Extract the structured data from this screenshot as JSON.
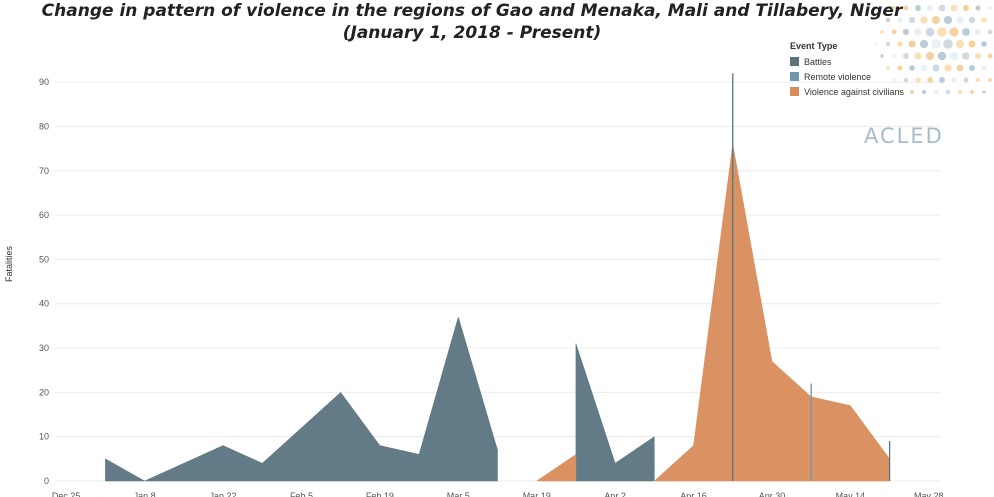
{
  "chart_data": {
    "type": "area",
    "title": "Change in pattern of violence in the regions of Gao and Menaka, Mali and Tillabery, Niger (January 1, 2018 - Present)",
    "xlabel": "",
    "ylabel": "Fatalities",
    "ylim": [
      0,
      95
    ],
    "yticks": [
      0,
      10,
      20,
      30,
      40,
      50,
      60,
      70,
      80,
      90
    ],
    "xticks": [
      "Dec 25",
      "Jan 8",
      "Jan 22",
      "Feb 5",
      "Feb 19",
      "Mar 5",
      "Mar 19",
      "Apr 2",
      "Apr 16",
      "Apr 30",
      "May 14",
      "May 28"
    ],
    "xlim": [
      "2017-12-23",
      "2018-05-30"
    ],
    "grid": "horizontal",
    "legend_title": "Event Type",
    "legend_position": "top-right",
    "series": [
      {
        "name": "Battles",
        "color": "#5b7480",
        "segments": [
          [
            [
              "2018-01-01",
              5
            ],
            [
              "2018-01-08",
              0
            ],
            [
              "2018-01-15",
              4
            ],
            [
              "2018-01-22",
              8
            ],
            [
              "2018-01-29",
              4
            ],
            [
              "2018-02-05",
              12
            ],
            [
              "2018-02-12",
              20
            ],
            [
              "2018-02-19",
              8
            ],
            [
              "2018-02-26",
              6
            ],
            [
              "2018-03-05",
              37
            ],
            [
              "2018-03-12",
              7
            ]
          ],
          [
            [
              "2018-03-26",
              31
            ],
            [
              "2018-04-02",
              4
            ],
            [
              "2018-04-09",
              10
            ]
          ]
        ],
        "spikes": [
          [
            "2018-04-23",
            92
          ],
          [
            "2018-05-21",
            9
          ]
        ]
      },
      {
        "name": "Remote violence",
        "color": "#6f97ac",
        "segments": [],
        "spikes": [
          [
            "2018-05-07",
            22
          ]
        ]
      },
      {
        "name": "Violence against civilians",
        "color": "#d98c5a",
        "segments": [
          [
            [
              "2018-03-19",
              0
            ],
            [
              "2018-03-26",
              6
            ]
          ],
          [
            [
              "2018-04-09",
              0
            ],
            [
              "2018-04-16",
              8
            ],
            [
              "2018-04-23",
              76
            ],
            [
              "2018-04-30",
              27
            ],
            [
              "2018-05-07",
              19
            ],
            [
              "2018-05-14",
              17
            ],
            [
              "2018-05-21",
              5
            ]
          ]
        ],
        "spikes": []
      }
    ]
  },
  "logo": {
    "text": "ACLED"
  }
}
